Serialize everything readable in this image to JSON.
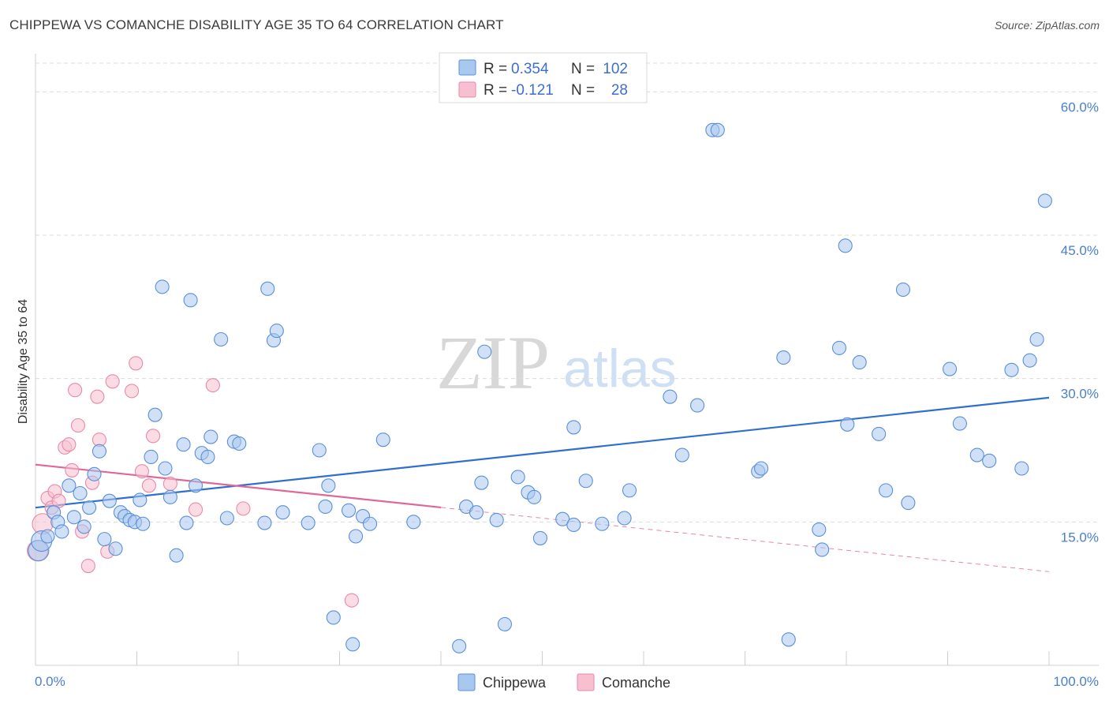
{
  "title": "CHIPPEWA VS COMANCHE DISABILITY AGE 35 TO 64 CORRELATION CHART",
  "source": "Source: ZipAtlas.com",
  "watermark": {
    "zip": "ZIP",
    "atlas": "atlas"
  },
  "legend": {
    "row1": {
      "r_label": "R =",
      "r_value": "0.354",
      "n_label": "N =",
      "n_value": "102"
    },
    "row2": {
      "r_label": "R =",
      "r_value": "-0.121",
      "n_label": "N =",
      "n_value": "28"
    }
  },
  "bottom_legend": {
    "series1": "Chippewa",
    "series2": "Comanche"
  },
  "colors": {
    "chippewa_fill": "#a9c8f0",
    "chippewa_stroke": "#5b8fd6",
    "chippewa_line": "#2f6fce",
    "comanche_fill": "#f7bfd0",
    "comanche_stroke": "#e88aa8",
    "comanche_line": "#e0679a"
  },
  "chart_data": {
    "type": "scatter",
    "title": "CHIPPEWA VS COMANCHE DISABILITY AGE 35 TO 64 CORRELATION CHART",
    "xlabel": "",
    "ylabel": "Disability Age 35 to 64",
    "xlim": [
      0,
      100
    ],
    "ylim": [
      0,
      63
    ],
    "x_tick_labels": {
      "left": "0.0%",
      "right": "100.0%"
    },
    "y_ticks": [
      {
        "value": 15,
        "label": "15.0%"
      },
      {
        "value": 30,
        "label": "30.0%"
      },
      {
        "value": 45,
        "label": "45.0%"
      },
      {
        "value": 60,
        "label": "60.0%"
      }
    ],
    "series": [
      {
        "name": "Chippewa",
        "r": 0.354,
        "n": 102,
        "trend": {
          "x": [
            0,
            100
          ],
          "y": [
            16.5,
            28.0
          ],
          "dashed_after": null
        },
        "points": [
          [
            0.3,
            12.0
          ],
          [
            0.6,
            13.0
          ],
          [
            1.2,
            13.5
          ],
          [
            1.8,
            16.0
          ],
          [
            2.2,
            15.0
          ],
          [
            2.6,
            14.0
          ],
          [
            3.3,
            18.8
          ],
          [
            3.8,
            15.5
          ],
          [
            4.4,
            18.0
          ],
          [
            4.8,
            14.5
          ],
          [
            5.3,
            16.5
          ],
          [
            5.8,
            20.0
          ],
          [
            6.3,
            22.4
          ],
          [
            6.8,
            13.2
          ],
          [
            7.3,
            17.2
          ],
          [
            7.9,
            12.2
          ],
          [
            8.4,
            16.0
          ],
          [
            8.8,
            15.6
          ],
          [
            9.3,
            15.2
          ],
          [
            9.8,
            15.0
          ],
          [
            10.3,
            17.3
          ],
          [
            10.6,
            14.8
          ],
          [
            11.4,
            21.8
          ],
          [
            11.8,
            26.2
          ],
          [
            12.5,
            39.6
          ],
          [
            12.8,
            20.6
          ],
          [
            13.3,
            17.6
          ],
          [
            13.9,
            11.5
          ],
          [
            14.6,
            23.1
          ],
          [
            14.9,
            14.9
          ],
          [
            15.3,
            38.2
          ],
          [
            15.8,
            18.8
          ],
          [
            16.4,
            22.2
          ],
          [
            17.0,
            21.8
          ],
          [
            17.3,
            23.9
          ],
          [
            18.3,
            34.1
          ],
          [
            18.9,
            15.4
          ],
          [
            19.6,
            23.4
          ],
          [
            20.1,
            23.2
          ],
          [
            22.6,
            14.9
          ],
          [
            22.9,
            39.4
          ],
          [
            23.5,
            34.0
          ],
          [
            23.8,
            35.0
          ],
          [
            24.4,
            16.0
          ],
          [
            26.9,
            14.9
          ],
          [
            28.0,
            22.5
          ],
          [
            28.6,
            16.6
          ],
          [
            28.9,
            18.8
          ],
          [
            29.4,
            5.0
          ],
          [
            30.9,
            16.2
          ],
          [
            31.3,
            2.2
          ],
          [
            31.6,
            13.5
          ],
          [
            32.3,
            15.6
          ],
          [
            33.0,
            14.8
          ],
          [
            34.3,
            23.6
          ],
          [
            37.3,
            15.0
          ],
          [
            41.8,
            2.0
          ],
          [
            42.5,
            16.6
          ],
          [
            43.5,
            16.0
          ],
          [
            44.0,
            19.1
          ],
          [
            44.3,
            32.8
          ],
          [
            45.5,
            15.2
          ],
          [
            46.3,
            4.3
          ],
          [
            47.6,
            19.7
          ],
          [
            48.6,
            18.1
          ],
          [
            49.2,
            17.6
          ],
          [
            49.8,
            13.3
          ],
          [
            52.0,
            15.3
          ],
          [
            53.1,
            14.7
          ],
          [
            53.1,
            24.9
          ],
          [
            54.3,
            19.3
          ],
          [
            55.9,
            14.8
          ],
          [
            58.1,
            15.4
          ],
          [
            58.6,
            18.3
          ],
          [
            62.6,
            28.1
          ],
          [
            63.8,
            22.0
          ],
          [
            65.3,
            27.2
          ],
          [
            66.8,
            56.0
          ],
          [
            67.3,
            56.0
          ],
          [
            71.3,
            20.3
          ],
          [
            71.6,
            20.6
          ],
          [
            73.8,
            32.2
          ],
          [
            74.3,
            2.7
          ],
          [
            77.3,
            14.2
          ],
          [
            77.6,
            12.1
          ],
          [
            79.3,
            33.2
          ],
          [
            79.9,
            43.9
          ],
          [
            80.1,
            25.2
          ],
          [
            81.3,
            31.7
          ],
          [
            83.2,
            24.2
          ],
          [
            83.9,
            18.3
          ],
          [
            85.6,
            39.3
          ],
          [
            86.1,
            17.0
          ],
          [
            90.2,
            31.0
          ],
          [
            91.2,
            25.3
          ],
          [
            92.9,
            22.0
          ],
          [
            94.1,
            21.4
          ],
          [
            96.3,
            30.9
          ],
          [
            97.3,
            20.6
          ],
          [
            98.1,
            31.9
          ],
          [
            98.8,
            34.1
          ],
          [
            99.6,
            48.6
          ]
        ]
      },
      {
        "name": "Comanche",
        "r": -0.121,
        "n": 28,
        "trend": {
          "x": [
            0,
            100
          ],
          "y": [
            21.0,
            9.8
          ],
          "solid_until_x": 40
        },
        "points": [
          [
            0.2,
            12.0
          ],
          [
            0.7,
            14.8
          ],
          [
            1.2,
            17.5
          ],
          [
            1.6,
            16.5
          ],
          [
            1.9,
            18.2
          ],
          [
            2.3,
            17.2
          ],
          [
            2.9,
            22.8
          ],
          [
            3.3,
            23.1
          ],
          [
            3.6,
            20.4
          ],
          [
            3.9,
            28.8
          ],
          [
            4.2,
            25.1
          ],
          [
            4.6,
            14.0
          ],
          [
            5.2,
            10.4
          ],
          [
            5.6,
            19.1
          ],
          [
            6.1,
            28.1
          ],
          [
            6.3,
            23.6
          ],
          [
            7.1,
            11.9
          ],
          [
            7.6,
            29.7
          ],
          [
            9.5,
            28.7
          ],
          [
            9.9,
            31.6
          ],
          [
            10.5,
            20.3
          ],
          [
            11.2,
            18.8
          ],
          [
            11.6,
            24.0
          ],
          [
            13.3,
            19.0
          ],
          [
            15.8,
            16.3
          ],
          [
            17.5,
            29.3
          ],
          [
            20.5,
            16.4
          ],
          [
            31.2,
            6.8
          ]
        ]
      }
    ]
  }
}
